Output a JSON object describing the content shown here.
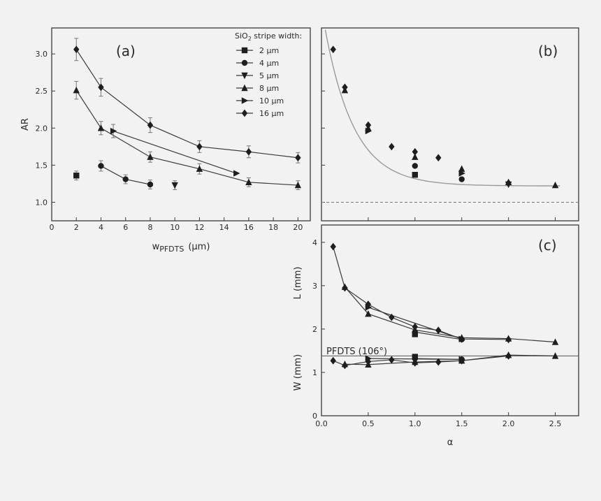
{
  "chart_data": [
    {
      "id": "a",
      "type": "line",
      "panel_label": "(a)",
      "xlabel_base": "w",
      "xlabel_sub": "PFDTS",
      "xlabel_unit": "(µm)",
      "ylabel": "AR",
      "xlim": [
        0,
        21
      ],
      "ylim": [
        0.75,
        3.35
      ],
      "xticks": [
        0,
        2,
        4,
        6,
        8,
        10,
        12,
        14,
        16,
        18,
        20
      ],
      "yticks": [
        1.0,
        1.5,
        2.0,
        2.5,
        3.0
      ],
      "ytick_labels": [
        "1.0",
        "1.5",
        "2.0",
        "2.5",
        "3.0"
      ],
      "legend_title": "SiO",
      "legend_title_sub": "2",
      "legend_title_rest": " stripe width:",
      "legend_position": "top-right",
      "series": [
        {
          "name": "2 µm",
          "marker": "square",
          "x": [
            2
          ],
          "y": [
            1.36
          ],
          "err": [
            0.06
          ]
        },
        {
          "name": "4 µm",
          "marker": "circle",
          "x": [
            4,
            6,
            8
          ],
          "y": [
            1.49,
            1.31,
            1.24
          ],
          "err": [
            0.07,
            0.06,
            0.06
          ]
        },
        {
          "name": "5 µm",
          "marker": "triangle-down",
          "x": [
            10
          ],
          "y": [
            1.23
          ],
          "err": [
            0.06
          ]
        },
        {
          "name": "8 µm",
          "marker": "triangle-up",
          "x": [
            2,
            4,
            8,
            12,
            16,
            20
          ],
          "y": [
            2.51,
            2.0,
            1.61,
            1.45,
            1.27,
            1.23
          ],
          "err": [
            0.12,
            0.09,
            0.07,
            0.07,
            0.06,
            0.06
          ]
        },
        {
          "name": "10 µm",
          "marker": "triangle-right",
          "x": [
            5,
            15
          ],
          "y": [
            1.96,
            1.39
          ],
          "err": [
            0.09,
            0.0
          ]
        },
        {
          "name": "16 µm",
          "marker": "diamond",
          "x": [
            2,
            4,
            8,
            12,
            16,
            20
          ],
          "y": [
            3.06,
            2.55,
            2.04,
            1.75,
            1.68,
            1.6
          ],
          "err": [
            0.15,
            0.12,
            0.1,
            0.08,
            0.08,
            0.07
          ]
        }
      ]
    },
    {
      "id": "b",
      "type": "scatter",
      "panel_label": "(b)",
      "xlim": [
        0,
        2.75
      ],
      "ylim": [
        0.75,
        3.35
      ],
      "xticks": [
        0.5,
        1.0,
        1.5,
        2.0,
        2.5
      ],
      "yticks": [
        1.0,
        1.5,
        2.0,
        2.5,
        3.0
      ],
      "fit_curve": {
        "a": 1.22,
        "b": 2.4,
        "k": 3.2
      },
      "reference_y": 1.0,
      "series": [
        {
          "marker": "square",
          "x": [
            1.0
          ],
          "y": [
            1.37
          ]
        },
        {
          "marker": "circle",
          "x": [
            1.0,
            1.5
          ],
          "y": [
            1.49,
            1.31
          ]
        },
        {
          "marker": "triangle-down",
          "x": [
            2.0
          ],
          "y": [
            1.24
          ]
        },
        {
          "marker": "triangle-up",
          "x": [
            0.25,
            0.5,
            1.0,
            1.5,
            2.0,
            2.5
          ],
          "y": [
            2.51,
            2.0,
            1.61,
            1.45,
            1.27,
            1.23
          ]
        },
        {
          "marker": "triangle-right",
          "x": [
            0.5,
            1.5
          ],
          "y": [
            1.96,
            1.39
          ]
        },
        {
          "marker": "diamond",
          "x": [
            0.125,
            0.25,
            0.5,
            0.75,
            1.0,
            1.25,
            2.0
          ],
          "y": [
            3.06,
            2.55,
            2.04,
            1.75,
            1.68,
            1.6,
            1.26
          ]
        }
      ]
    },
    {
      "id": "c",
      "type": "line",
      "panel_label": "(c)",
      "xlabel": "α",
      "ylabel_upper": "L (mm)",
      "ylabel_lower": "W (mm)",
      "xlim": [
        0,
        2.75
      ],
      "ylim": [
        0,
        4.4
      ],
      "xticks": [
        0.0,
        0.5,
        1.0,
        1.5,
        2.0,
        2.5
      ],
      "xtick_labels": [
        "0.0",
        "0.5",
        "1.0",
        "1.5",
        "2.0",
        "2.5"
      ],
      "yticks": [
        0,
        1,
        2,
        3,
        4
      ],
      "ytick_labels": [
        "0",
        "1",
        "2",
        "3",
        "4"
      ],
      "reference_line": {
        "y": 1.38,
        "label": "PFDTS (106°)"
      },
      "series": [
        {
          "name": "L 8 µm",
          "marker": "triangle-up",
          "x": [
            0.25,
            0.5,
            1.0,
            1.5,
            2.0,
            2.5
          ],
          "y": [
            2.97,
            2.35,
            1.98,
            1.8,
            1.78,
            1.7
          ]
        },
        {
          "name": "L 10 µm",
          "marker": "triangle-right",
          "x": [
            0.5,
            1.5
          ],
          "y": [
            2.5,
            1.77
          ]
        },
        {
          "name": "L 16 µm",
          "marker": "diamond",
          "x": [
            0.125,
            0.25,
            0.5,
            0.75,
            1.0,
            1.25,
            1.5,
            2.0
          ],
          "y": [
            3.9,
            2.95,
            2.57,
            2.27,
            2.05,
            1.97,
            1.77,
            1.76
          ]
        },
        {
          "name": "L 4 µm",
          "marker": "circle",
          "x": [
            1.0,
            1.5
          ],
          "y": [
            1.93,
            1.76
          ]
        },
        {
          "name": "L 2 µm",
          "marker": "square",
          "x": [
            1.0
          ],
          "y": [
            1.88
          ]
        },
        {
          "name": "W 8 µm",
          "marker": "triangle-up",
          "x": [
            0.25,
            0.5,
            1.0,
            1.5,
            2.0,
            2.5
          ],
          "y": [
            1.19,
            1.18,
            1.24,
            1.27,
            1.4,
            1.38
          ]
        },
        {
          "name": "W 10 µm",
          "marker": "triangle-right",
          "x": [
            0.5,
            1.5
          ],
          "y": [
            1.32,
            1.3
          ]
        },
        {
          "name": "W 16 µm",
          "marker": "diamond",
          "x": [
            0.125,
            0.25,
            0.5,
            0.75,
            1.0,
            1.25,
            1.5,
            2.0
          ],
          "y": [
            1.27,
            1.16,
            1.25,
            1.29,
            1.22,
            1.24,
            1.27,
            1.38
          ]
        },
        {
          "name": "W 4 µm",
          "marker": "circle",
          "x": [
            1.0,
            1.5
          ],
          "y": [
            1.32,
            1.3
          ]
        },
        {
          "name": "W 2 µm",
          "marker": "square",
          "x": [
            1.0
          ],
          "y": [
            1.36
          ]
        }
      ]
    }
  ]
}
